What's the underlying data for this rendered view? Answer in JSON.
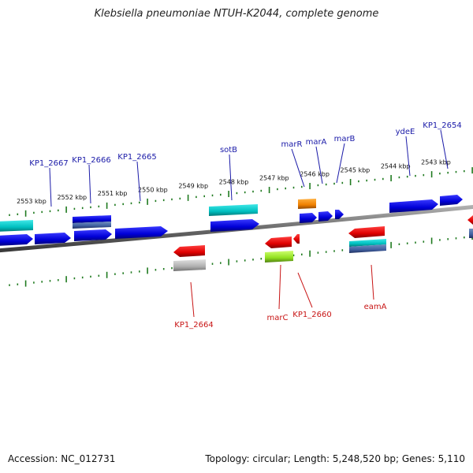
{
  "title": "Klebsiella pneumoniae NTUH-K2044, complete genome",
  "footer": {
    "accession": "Accession: NC_012731",
    "topology": "Topology: circular; Length: 5,248,520 bp; Genes: 5,110"
  },
  "colors": {
    "forward_label": "#1a1aa8",
    "reverse_label": "#c81414",
    "tick": "#1f7a1f",
    "backbone": "#7a7a7a"
  },
  "ticks": [
    {
      "label": "2553 kbp"
    },
    {
      "label": "2552 kbp"
    },
    {
      "label": "2551 kbp"
    },
    {
      "label": "2550 kbp"
    },
    {
      "label": "2549 kbp"
    },
    {
      "label": "2548 kbp"
    },
    {
      "label": "2547 kbp"
    },
    {
      "label": "2546 kbp"
    },
    {
      "label": "2545 kbp"
    },
    {
      "label": "2544 kbp"
    },
    {
      "label": "2543 kbp"
    }
  ],
  "gene_labels_forward": [
    "KP1_2667",
    "KP1_2666",
    "KP1_2665",
    "sotB",
    "marR",
    "marA",
    "marB",
    "ydeE",
    "KP1_2654"
  ],
  "gene_labels_reverse": [
    "KP1_2664",
    "marC",
    "KP1_2660",
    "eamA"
  ]
}
